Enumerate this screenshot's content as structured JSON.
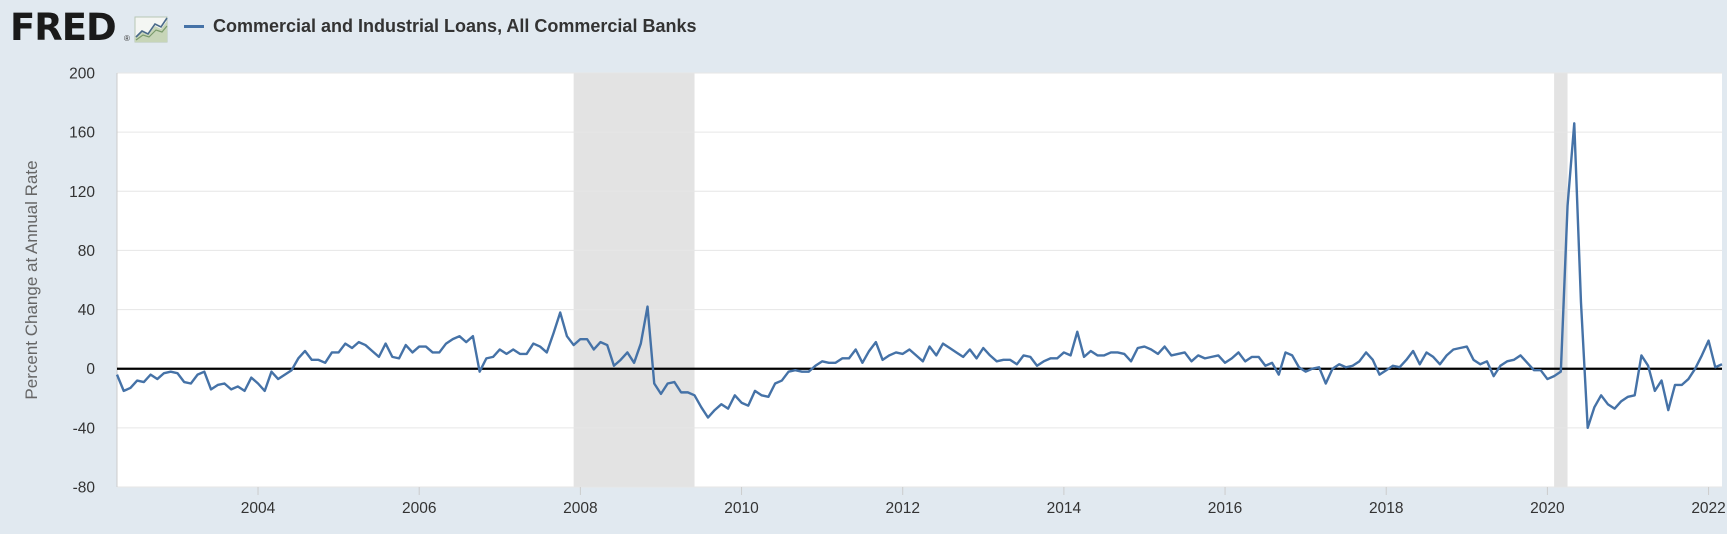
{
  "header": {
    "logo_text": "FRED",
    "logo_mark": "®",
    "logo_icon": "chart-line-icon",
    "legend_label": "Commercial and Industrial Loans, All Commercial Banks"
  },
  "colors": {
    "series": "#4572a7",
    "recession": "#e3e3e3",
    "zero_line": "#000000",
    "grid": "#e6e6e6",
    "background": "#e1e9f0"
  },
  "chart_data": {
    "type": "line",
    "title": "",
    "xlabel": "",
    "ylabel": "Percent Change at Annual Rate",
    "x_range": [
      "2002-04",
      "2022-03"
    ],
    "ylim": [
      -80,
      200
    ],
    "y_ticks": [
      200,
      160,
      120,
      80,
      40,
      0,
      -40,
      -80
    ],
    "x_ticks": [
      "2004",
      "2006",
      "2008",
      "2010",
      "2012",
      "2014",
      "2016",
      "2018",
      "2020",
      "2022"
    ],
    "grid": true,
    "legend": "top-left",
    "recessions": [
      {
        "start": "2007-12",
        "end": "2009-06"
      },
      {
        "start": "2020-02",
        "end": "2020-04"
      }
    ],
    "series": [
      {
        "name": "Commercial and Industrial Loans, All Commercial Banks",
        "start": "2002-04",
        "frequency": "monthly",
        "values": [
          -4,
          -15,
          -13,
          -8,
          -9,
          -4,
          -7,
          -3,
          -2,
          -3,
          -9,
          -10,
          -4,
          -2,
          -14,
          -11,
          -10,
          -14,
          -12,
          -15,
          -6,
          -10,
          -15,
          -2,
          -7,
          -4,
          -1,
          7,
          12,
          6,
          6,
          4,
          11,
          11,
          17,
          14,
          18,
          16,
          12,
          8,
          17,
          8,
          7,
          16,
          11,
          15,
          15,
          11,
          11,
          17,
          20,
          22,
          18,
          22,
          -2,
          7,
          8,
          13,
          10,
          13,
          10,
          10,
          17,
          15,
          11,
          24,
          38,
          22,
          16,
          20,
          20,
          13,
          18,
          16,
          2,
          6,
          11,
          4,
          17,
          42,
          -10,
          -17,
          -10,
          -9,
          -16,
          -16,
          -18,
          -26,
          -33,
          -28,
          -24,
          -27,
          -18,
          -23,
          -25,
          -15,
          -18,
          -19,
          -10,
          -8,
          -2,
          -1,
          -2,
          -2,
          2,
          5,
          4,
          4,
          7,
          7,
          13,
          4,
          12,
          18,
          6,
          9,
          11,
          10,
          13,
          9,
          5,
          15,
          9,
          17,
          14,
          11,
          8,
          13,
          7,
          14,
          9,
          5,
          6,
          6,
          3,
          9,
          8,
          2,
          5,
          7,
          7,
          11,
          9,
          25,
          8,
          12,
          9,
          9,
          11,
          11,
          10,
          5,
          14,
          15,
          13,
          10,
          15,
          9,
          10,
          11,
          5,
          9,
          7,
          8,
          9,
          4,
          7,
          11,
          5,
          8,
          8,
          2,
          4,
          -4,
          11,
          9,
          1,
          -2,
          0,
          1,
          -10,
          0,
          3,
          1,
          2,
          5,
          11,
          6,
          -4,
          -1,
          2,
          1,
          6,
          12,
          3,
          11,
          8,
          3,
          9,
          13,
          14,
          15,
          6,
          3,
          5,
          -5,
          2,
          5,
          6,
          9,
          4,
          -1,
          -1,
          -7,
          -5,
          -2,
          110,
          166,
          45,
          -40,
          -26,
          -18,
          -24,
          -27,
          -22,
          -19,
          -18,
          9,
          2,
          -15,
          -8,
          -28,
          -11,
          -11,
          -7,
          0,
          9,
          19,
          1,
          3
        ]
      }
    ]
  }
}
